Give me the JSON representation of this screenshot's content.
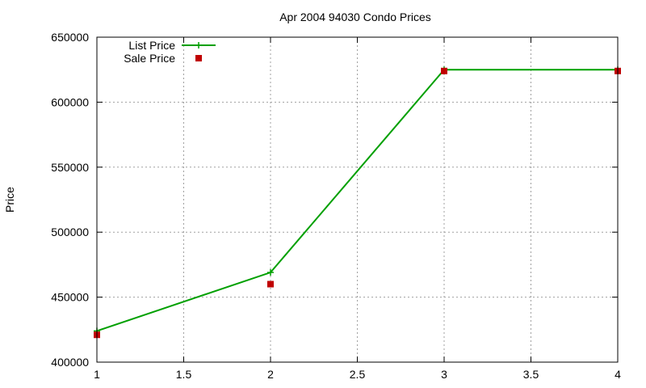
{
  "chart_data": {
    "type": "line",
    "title": "Apr 2004 94030 Condo Prices",
    "xlabel": "",
    "ylabel": "Price",
    "xlim": [
      1,
      4
    ],
    "ylim": [
      400000,
      650000
    ],
    "x_ticks": [
      1,
      1.5,
      2,
      2.5,
      3,
      3.5,
      4
    ],
    "y_ticks": [
      400000,
      450000,
      500000,
      550000,
      600000,
      650000
    ],
    "grid": true,
    "legend": "top-left",
    "series": [
      {
        "name": "List Price",
        "style": "linespoints",
        "marker": "plus",
        "color": "#00a000",
        "x": [
          1,
          2,
          3,
          4
        ],
        "y": [
          424000,
          469000,
          625000,
          625000
        ]
      },
      {
        "name": "Sale Price",
        "style": "points",
        "marker": "square",
        "color": "#c00000",
        "x": [
          1,
          2,
          3,
          4
        ],
        "y": [
          421000,
          460000,
          624000,
          624000
        ]
      }
    ]
  }
}
